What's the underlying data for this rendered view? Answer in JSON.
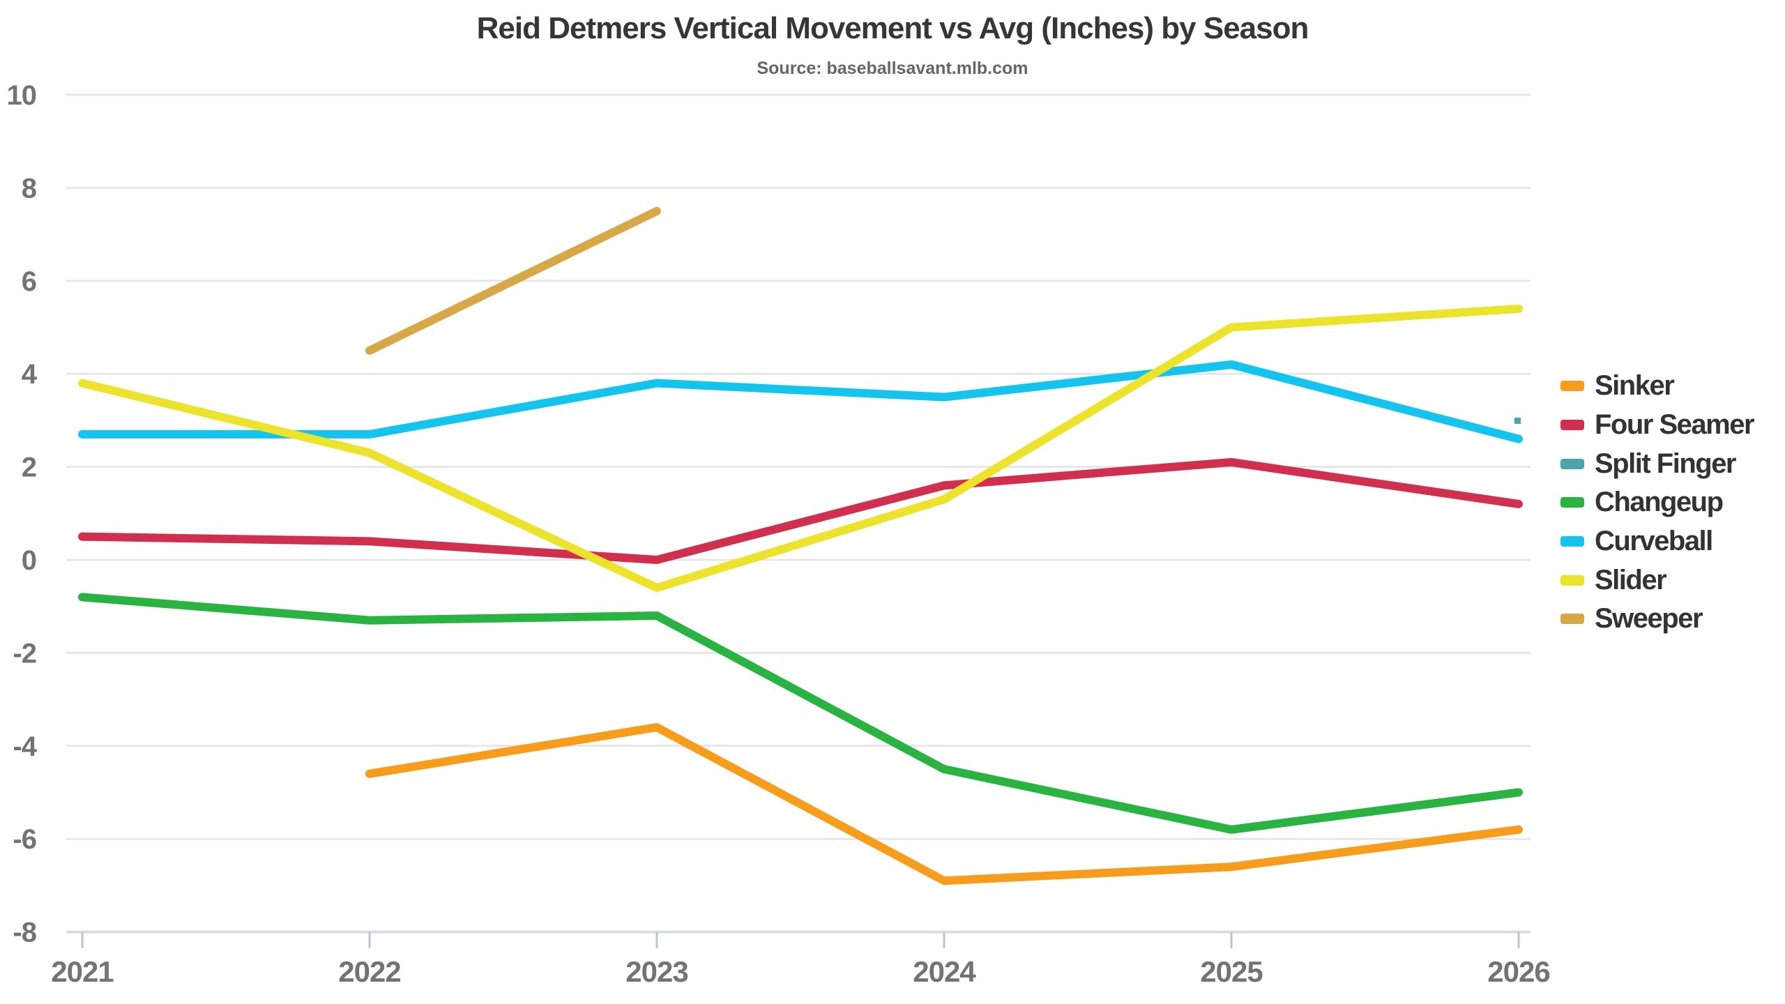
{
  "title": "Reid Detmers Vertical Movement vs Avg (Inches) by Season",
  "subtitle": "Source: baseballsavant.mlb.com",
  "chart_data": {
    "type": "line",
    "x": [
      2021,
      2022,
      2023,
      2024,
      2025,
      2026
    ],
    "xlabel": "",
    "ylabel": "",
    "ylim": [
      -8,
      10
    ],
    "yticks": [
      10,
      8,
      6,
      4,
      2,
      0,
      -2,
      -4,
      -6,
      -8
    ],
    "grid": true,
    "legend_position": "right",
    "series": [
      {
        "name": "Sinker",
        "color": "#F89C1C",
        "values": [
          null,
          -4.6,
          -3.6,
          -6.9,
          -6.6,
          -5.8
        ]
      },
      {
        "name": "Four Seamer",
        "color": "#D22E4E",
        "values": [
          0.5,
          0.4,
          0.0,
          1.6,
          2.1,
          1.2
        ]
      },
      {
        "name": "Split Finger",
        "color": "#4CA5AD",
        "values": [
          null,
          null,
          null,
          null,
          null,
          3.0
        ],
        "marker": "square"
      },
      {
        "name": "Changeup",
        "color": "#29B441",
        "values": [
          -0.8,
          -1.3,
          -1.2,
          -4.5,
          -5.8,
          -5.0
        ]
      },
      {
        "name": "Curveball",
        "color": "#13C5EE",
        "values": [
          2.7,
          2.7,
          3.8,
          3.5,
          4.2,
          2.6
        ]
      },
      {
        "name": "Slider",
        "color": "#EDE32A",
        "values": [
          3.8,
          2.3,
          -0.6,
          1.3,
          5.0,
          5.4
        ]
      },
      {
        "name": "Sweeper",
        "color": "#D7A845",
        "values": [
          null,
          4.5,
          7.5,
          null,
          null,
          null
        ]
      }
    ]
  },
  "colors": {
    "background": "#FFFFFF",
    "gridline": "#E7E7E7",
    "axis_line": "#D9DEE2",
    "tick": "#B9C6D0",
    "axis_label": "#737373",
    "title": "#363636",
    "subtitle": "#666666",
    "legend_label": "#333333"
  }
}
